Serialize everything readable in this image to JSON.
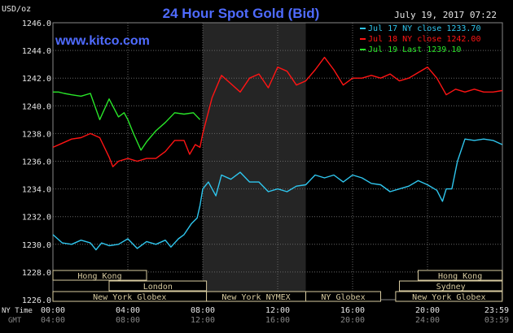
{
  "header": {
    "unit_label": "USD/oz",
    "title": "24 Hour Spot Gold (Bid)",
    "timestamp": "July 19, 2017 07:22",
    "site": "www.kitco.com"
  },
  "colors": {
    "background": "#000000",
    "title": "#4f6bff",
    "site": "#4f6bff",
    "grid": "#666666",
    "session_shade": "#252525",
    "session_box": "#d8cba0",
    "jul17": "#2fc6ee",
    "jul18": "#ff1414",
    "jul19": "#29e629",
    "axis_text": "#e6e6e6"
  },
  "chart_data": {
    "type": "line",
    "title": "24 Hour Spot Gold (Bid)",
    "ylabel": "USD/oz",
    "ylim": [
      1226,
      1246
    ],
    "yticks": [
      "1246.0",
      "1244.0",
      "1242.0",
      "1240.0",
      "1238.0",
      "1236.0",
      "1234.0",
      "1232.0",
      "1230.0",
      "1228.0",
      "1226.0"
    ],
    "xlim": [
      0,
      24
    ],
    "x_row_labels": [
      "NY Time",
      "GMT"
    ],
    "x_ticks_ny": [
      "00:00",
      "04:00",
      "08:00",
      "12:00",
      "16:00",
      "20:00",
      "23:59"
    ],
    "x_ticks_gmt": [
      "04:00",
      "08:00",
      "12:00",
      "16:00",
      "20:00",
      "24:00",
      "03:59"
    ],
    "shaded_region": [
      8,
      13.5
    ],
    "grid": true,
    "legend_position": "top-right",
    "series": [
      {
        "name": "Jul 17 NY close 1233.70",
        "color_key": "jul17",
        "x": [
          0,
          0.5,
          1,
          1.5,
          2,
          2.3,
          2.6,
          3,
          3.5,
          4,
          4.5,
          5,
          5.5,
          6,
          6.3,
          6.7,
          7,
          7.4,
          7.7,
          7.85,
          8,
          8.3,
          8.7,
          9,
          9.5,
          10,
          10.5,
          11,
          11.5,
          12,
          12.5,
          13,
          13.5,
          14,
          14.5,
          15,
          15.5,
          16,
          16.5,
          17,
          17.5,
          18,
          18.5,
          19,
          19.5,
          20,
          20.5,
          20.8,
          21,
          21.3,
          21.6,
          22,
          22.5,
          23,
          23.5,
          23.99
        ],
        "values": [
          1230.7,
          1230.1,
          1230.0,
          1230.3,
          1230.1,
          1229.6,
          1230.1,
          1229.9,
          1230.0,
          1230.4,
          1229.7,
          1230.2,
          1230.0,
          1230.3,
          1229.8,
          1230.4,
          1230.7,
          1231.5,
          1231.9,
          1232.8,
          1234.0,
          1234.5,
          1233.5,
          1235.0,
          1234.7,
          1235.2,
          1234.5,
          1234.5,
          1233.8,
          1234.0,
          1233.8,
          1234.2,
          1234.3,
          1235.0,
          1234.8,
          1235.0,
          1234.5,
          1235.0,
          1234.8,
          1234.4,
          1234.3,
          1233.8,
          1234.0,
          1234.2,
          1234.6,
          1234.3,
          1233.9,
          1233.1,
          1234.0,
          1234.0,
          1236.0,
          1237.6,
          1237.5,
          1237.6,
          1237.5,
          1237.2
        ]
      },
      {
        "name": "Jul 18 NY close 1242.00",
        "color_key": "jul18",
        "x": [
          0,
          0.5,
          1,
          1.5,
          2,
          2.5,
          3,
          3.2,
          3.5,
          4,
          4.5,
          5,
          5.5,
          6,
          6.5,
          7,
          7.3,
          7.6,
          7.85,
          8,
          8.5,
          9,
          9.5,
          10,
          10.5,
          11,
          11.5,
          12,
          12.5,
          13,
          13.5,
          14,
          14.5,
          15,
          15.5,
          16,
          16.5,
          17,
          17.5,
          18,
          18.5,
          19,
          19.5,
          20,
          20.5,
          21,
          21.5,
          22,
          22.5,
          23,
          23.5,
          23.99
        ],
        "values": [
          1237.0,
          1237.3,
          1237.6,
          1237.7,
          1238.0,
          1237.7,
          1236.3,
          1235.6,
          1236.0,
          1236.2,
          1236.0,
          1236.2,
          1236.2,
          1236.7,
          1237.5,
          1237.5,
          1236.5,
          1237.2,
          1237.0,
          1238.0,
          1240.6,
          1242.2,
          1241.6,
          1241.0,
          1242.0,
          1242.3,
          1241.3,
          1242.8,
          1242.5,
          1241.5,
          1241.8,
          1242.6,
          1243.5,
          1242.6,
          1241.5,
          1242.0,
          1242.0,
          1242.2,
          1242.0,
          1242.3,
          1241.8,
          1242.0,
          1242.4,
          1242.8,
          1242.0,
          1240.8,
          1241.2,
          1241.0,
          1241.2,
          1241.0,
          1241.0,
          1241.1
        ]
      },
      {
        "name": "Jul 19 Last 1239.10",
        "color_key": "jul19",
        "x": [
          0,
          0.3,
          0.6,
          1,
          1.5,
          2,
          2.5,
          3,
          3.5,
          3.8,
          4,
          4.3,
          4.7,
          5,
          5.5,
          6,
          6.5,
          7,
          7.5,
          7.85
        ],
        "values": [
          1241.0,
          1241.0,
          1240.9,
          1240.8,
          1240.7,
          1240.9,
          1239.0,
          1240.5,
          1239.2,
          1239.5,
          1239.0,
          1238.0,
          1236.8,
          1237.4,
          1238.2,
          1238.8,
          1239.5,
          1239.4,
          1239.5,
          1239.0
        ]
      }
    ]
  },
  "sessions": [
    {
      "label": "Hong Kong",
      "start": 0,
      "end": 5,
      "row": 0
    },
    {
      "label": "Hong Kong",
      "start": 19.5,
      "end": 23.99,
      "row": 0
    },
    {
      "label": "London",
      "start": 3,
      "end": 8.2,
      "row": 1
    },
    {
      "label": "Sydney",
      "start": 18.5,
      "end": 23.99,
      "row": 1
    },
    {
      "label": "New York Globex",
      "start": 0,
      "end": 8.2,
      "row": 2
    },
    {
      "label": "New York NYMEX",
      "start": 8.2,
      "end": 13.5,
      "row": 2
    },
    {
      "label": "NY Globex",
      "start": 13.5,
      "end": 17.5,
      "row": 2
    },
    {
      "label": "New York Globex",
      "start": 18.3,
      "end": 23.99,
      "row": 2
    }
  ]
}
